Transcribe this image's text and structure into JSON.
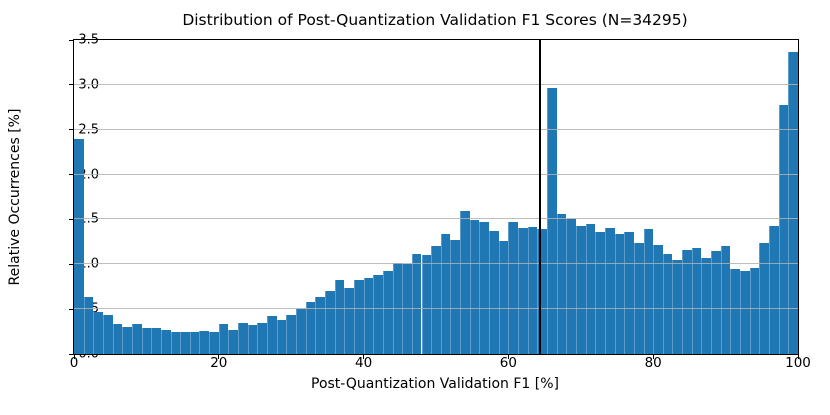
{
  "chart_data": {
    "type": "bar",
    "subtype": "histogram",
    "title": "Distribution of Post-Quantization Validation F1 Scores (N=34295)",
    "xlabel": "Post-Quantization Validation F1 [%]",
    "ylabel": "Relative Occurrences [%]",
    "n_shown_in_title": 34295,
    "xlim": [
      0,
      100
    ],
    "ylim": [
      0,
      3.5
    ],
    "x_ticks": [
      0,
      20,
      40,
      60,
      80,
      100
    ],
    "y_ticks": [
      "0.0",
      "0.5",
      "1.0",
      "1.5",
      "2.0",
      "2.5",
      "3.0",
      "3.5"
    ],
    "grid": "horizontal-over-bars",
    "gridline_values": [
      0.5,
      1.0,
      1.5,
      2.0,
      2.5,
      3.0
    ],
    "bin_start": 0,
    "bin_width": 1.3333,
    "values": [
      2.4,
      0.64,
      0.47,
      0.44,
      0.34,
      0.3,
      0.33,
      0.29,
      0.29,
      0.27,
      0.25,
      0.24,
      0.24,
      0.26,
      0.25,
      0.33,
      0.27,
      0.35,
      0.32,
      0.35,
      0.42,
      0.38,
      0.44,
      0.5,
      0.58,
      0.64,
      0.7,
      0.83,
      0.74,
      0.83,
      0.85,
      0.88,
      0.92,
      1.02,
      1.0,
      1.11,
      1.1,
      1.2,
      1.34,
      1.27,
      1.59,
      1.49,
      1.47,
      1.37,
      1.26,
      1.47,
      1.4,
      1.42,
      1.39,
      2.97,
      1.56,
      1.5,
      1.43,
      1.45,
      1.36,
      1.4,
      1.34,
      1.36,
      1.24,
      1.39,
      1.21,
      1.11,
      1.05,
      1.16,
      1.18,
      1.07,
      1.15,
      1.2,
      0.95,
      0.93,
      0.96,
      1.24,
      1.43,
      2.78,
      3.37
    ],
    "vline_x": 64.3,
    "colors": {
      "bar": "#1f77b4",
      "vline": "#000000",
      "grid": "#b2b2b2",
      "spine": "#000000",
      "text": "#000000"
    }
  }
}
